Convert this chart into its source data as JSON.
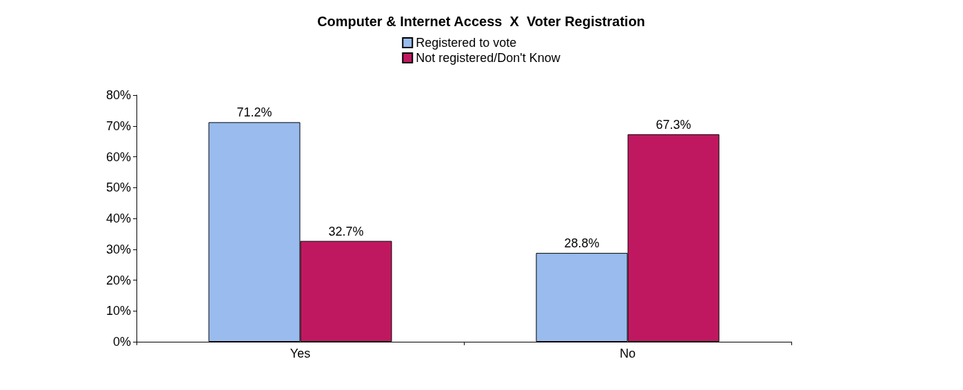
{
  "chart_data": {
    "type": "bar",
    "title": "Computer & Internet Access  X  Voter Registration",
    "categories": [
      "Yes",
      "No"
    ],
    "series": [
      {
        "name": "Registered to vote",
        "color": "#99bbee",
        "values": [
          71.2,
          28.8
        ],
        "value_labels": [
          "71.2%",
          "28.8%"
        ]
      },
      {
        "name": "Not registered/Don't Know",
        "color": "#c01860",
        "values": [
          32.7,
          67.3
        ],
        "value_labels": [
          "32.7%",
          "67.3%"
        ]
      }
    ],
    "ylim": [
      0,
      80
    ],
    "yticks": [
      {
        "value": 0,
        "label": "0%"
      },
      {
        "value": 10,
        "label": "10%"
      },
      {
        "value": 20,
        "label": "20%"
      },
      {
        "value": 30,
        "label": "30%"
      },
      {
        "value": 40,
        "label": "40%"
      },
      {
        "value": 50,
        "label": "50%"
      },
      {
        "value": 60,
        "label": "60%"
      },
      {
        "value": 70,
        "label": "70%"
      },
      {
        "value": 80,
        "label": "80%"
      }
    ],
    "grid": false,
    "legend": "top"
  }
}
